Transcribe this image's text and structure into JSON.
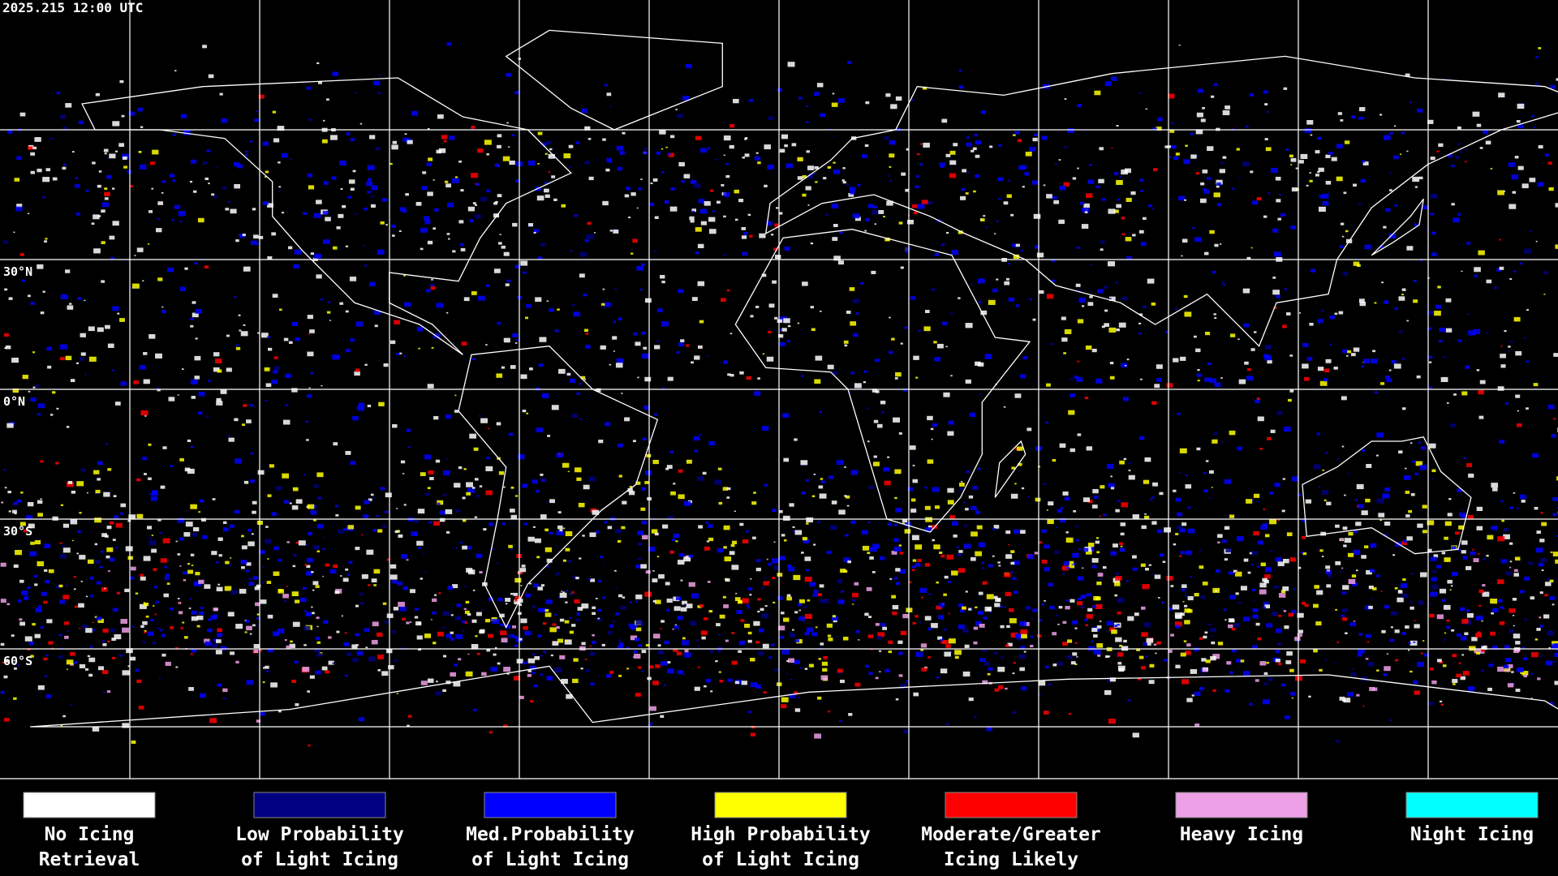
{
  "header": {
    "timestamp": "2025.215 12:00 UTC"
  },
  "map": {
    "lat_labels": [
      "30°N",
      "0°N",
      "30°S",
      "60°S"
    ]
  },
  "legend": {
    "items": [
      {
        "lines": [
          "No Icing",
          "Retrieval"
        ],
        "color": "#ffffff"
      },
      {
        "lines": [
          "Low Probability",
          "of Light Icing"
        ],
        "color": "#000080"
      },
      {
        "lines": [
          "Med.Probability",
          "of Light Icing"
        ],
        "color": "#0000ff"
      },
      {
        "lines": [
          "High Probability",
          "of Light Icing"
        ],
        "color": "#ffff00"
      },
      {
        "lines": [
          "Moderate/Greater",
          "Icing Likely"
        ],
        "color": "#ff0000"
      },
      {
        "lines": [
          "Heavy Icing"
        ],
        "color": "#eea0e6"
      },
      {
        "lines": [
          "Night Icing"
        ],
        "color": "#00ffff"
      }
    ]
  }
}
